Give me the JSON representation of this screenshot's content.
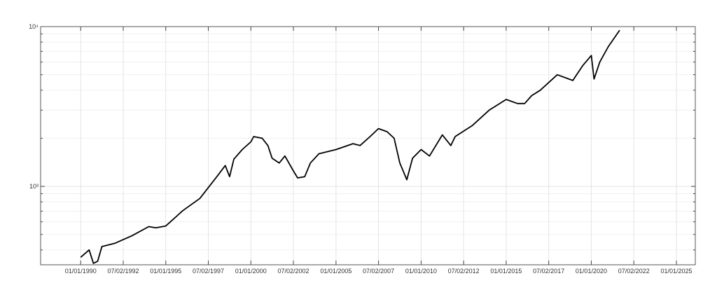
{
  "chart_data": {
    "type": "line",
    "log_y": true,
    "grid": true,
    "x": [
      "1990-01-01",
      "1990-07-01",
      "1990-10-01",
      "1991-01-01",
      "1991-04-01",
      "1992-01-01",
      "1993-01-01",
      "1994-01-01",
      "1994-06-01",
      "1995-01-01",
      "1996-01-01",
      "1997-01-01",
      "1998-01-01",
      "1998-07-01",
      "1998-10-01",
      "1999-01-01",
      "1999-07-01",
      "2000-01-01",
      "2000-03-01",
      "2000-09-01",
      "2001-01-01",
      "2001-04-01",
      "2001-09-01",
      "2002-01-01",
      "2002-07-01",
      "2002-10-01",
      "2003-03-01",
      "2003-07-01",
      "2004-01-01",
      "2005-01-01",
      "2006-01-01",
      "2006-06-01",
      "2007-01-01",
      "2007-07-01",
      "2008-01-01",
      "2008-06-01",
      "2008-10-01",
      "2009-03-01",
      "2009-07-01",
      "2010-01-01",
      "2010-07-01",
      "2011-04-01",
      "2011-10-01",
      "2012-01-01",
      "2013-01-01",
      "2014-01-01",
      "2015-01-01",
      "2015-09-01",
      "2016-02-01",
      "2016-07-01",
      "2017-01-01",
      "2018-01-01",
      "2018-12-01",
      "2019-07-01",
      "2020-01-01",
      "2020-03-01",
      "2020-07-01",
      "2021-01-01",
      "2021-09-01"
    ],
    "series": [
      {
        "color": "#000000",
        "values": [
          360,
          400,
          330,
          340,
          420,
          440,
          490,
          560,
          550,
          565,
          705,
          840,
          1150,
          1350,
          1150,
          1480,
          1700,
          1900,
          2050,
          2000,
          1800,
          1500,
          1400,
          1550,
          1250,
          1130,
          1150,
          1400,
          1600,
          1700,
          1850,
          1800,
          2050,
          2300,
          2200,
          2000,
          1400,
          1100,
          1500,
          1700,
          1550,
          2100,
          1800,
          2050,
          2400,
          3000,
          3500,
          3300,
          3300,
          3700,
          4000,
          5000,
          4600,
          5700,
          6600,
          4700,
          6000,
          7500,
          9500
        ]
      }
    ],
    "xlim": [
      "1987-08-25",
      "2026-02-10"
    ],
    "xticks": [
      {
        "value": "1990-01-01",
        "label": "01/01/1990"
      },
      {
        "value": "1992-07-02",
        "label": "07/02/1992"
      },
      {
        "value": "1995-01-01",
        "label": "01/01/1995"
      },
      {
        "value": "1997-07-02",
        "label": "07/02/1997"
      },
      {
        "value": "2000-01-01",
        "label": "01/01/2000"
      },
      {
        "value": "2002-07-02",
        "label": "07/02/2002"
      },
      {
        "value": "2005-01-01",
        "label": "01/01/2005"
      },
      {
        "value": "2007-07-02",
        "label": "07/02/2007"
      },
      {
        "value": "2010-01-01",
        "label": "01/01/2010"
      },
      {
        "value": "2012-07-02",
        "label": "07/02/2012"
      },
      {
        "value": "2015-01-01",
        "label": "01/01/2015"
      },
      {
        "value": "2017-07-02",
        "label": "07/02/2017"
      },
      {
        "value": "2020-01-01",
        "label": "01/01/2020"
      },
      {
        "value": "2022-07-02",
        "label": "07/02/2022"
      },
      {
        "value": "2025-01-01",
        "label": "01/01/2025"
      }
    ],
    "ylim": [
      323,
      10000
    ],
    "yticks": [
      {
        "value": 1000,
        "label": "10³"
      },
      {
        "value": 10000,
        "label": "10⁴"
      }
    ]
  }
}
